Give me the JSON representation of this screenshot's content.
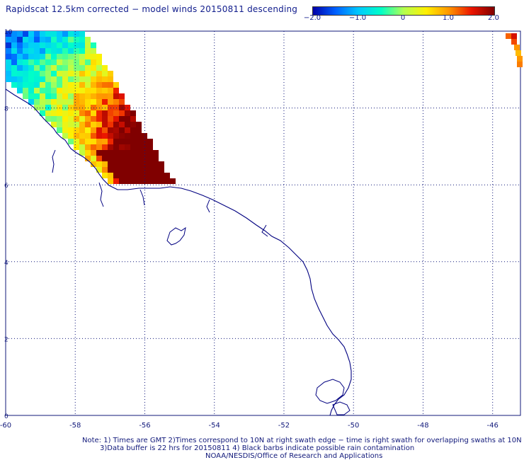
{
  "title": "Rapidscat 12.5km corrected − model winds 20150811 descending",
  "colorbar": {
    "tick_labels": [
      "−2.0",
      "−1.0",
      "0",
      "1.0",
      "2.0"
    ],
    "tick_values": [
      -2,
      -1,
      0,
      1,
      2
    ],
    "range": [
      -2,
      2
    ]
  },
  "axes": {
    "y_labels": [
      "10",
      "8",
      "6",
      "4",
      "2",
      "0"
    ],
    "y_values": [
      10,
      8,
      6,
      4,
      2,
      0
    ],
    "x_labels": [
      "-60",
      "-58",
      "-56",
      "-54",
      "-52",
      "-50",
      "-48",
      "-46"
    ],
    "x_values": [
      -60,
      -58,
      -56,
      -54,
      -52,
      -50,
      -48,
      -46
    ],
    "lon_range": [
      -60,
      -45.2
    ],
    "lat_range": [
      0,
      10
    ]
  },
  "notes": {
    "line1": "Note: 1) Times are GMT 2)Times correspond to 10N at right swath edge − time is right swath for overlapping swaths at 10N",
    "line2": "3)Data buffer is 22 hrs for 20150811 4) Black barbs indicate possible rain contamination",
    "line3": "NOAA/NESDIS/Office of Research and Applications"
  },
  "colors": {
    "grid": "#10187a",
    "coastline": "#000080",
    "text": "#10187a"
  }
}
